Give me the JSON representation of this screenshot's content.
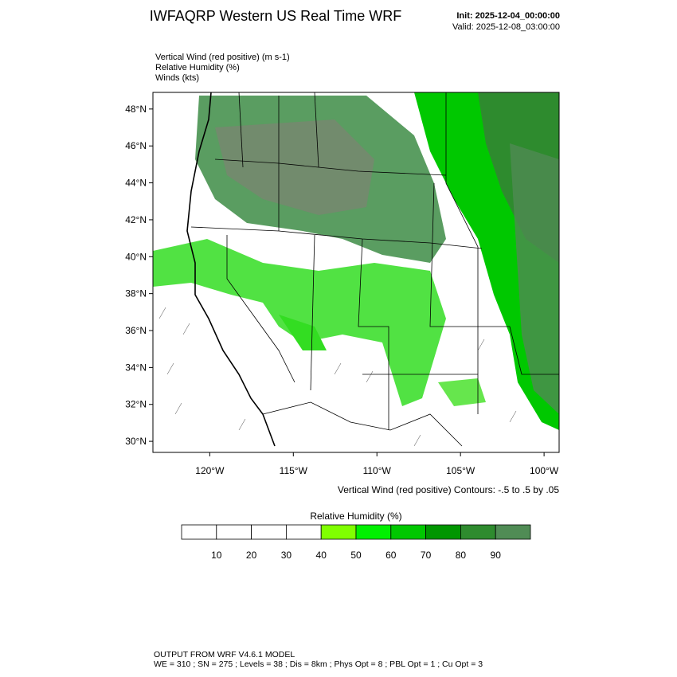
{
  "header": {
    "title": "IWFAQRP Western US Real Time WRF",
    "init": "Init: 2025-12-04_00:00:00",
    "valid": "Valid: 2025-12-08_03:00:00"
  },
  "fields": [
    "Vertical Wind (red positive)   (m s-1)",
    "Relative Humidity   (%)",
    "Winds   (kts)"
  ],
  "map": {
    "xlim": [
      -123.4,
      -99.1
    ],
    "ylim": [
      29.4,
      48.9
    ],
    "yticks": [
      {
        "value": 30,
        "label": "30°N"
      },
      {
        "value": 32,
        "label": "32°N"
      },
      {
        "value": 34,
        "label": "34°N"
      },
      {
        "value": 36,
        "label": "36°N"
      },
      {
        "value": 38,
        "label": "38°N"
      },
      {
        "value": 40,
        "label": "40°N"
      },
      {
        "value": 42,
        "label": "42°N"
      },
      {
        "value": 44,
        "label": "44°N"
      },
      {
        "value": 46,
        "label": "46°N"
      },
      {
        "value": 48,
        "label": "48°N"
      }
    ],
    "xticks": [
      {
        "value": -120,
        "label": "120°W"
      },
      {
        "value": -115,
        "label": "115°W"
      },
      {
        "value": -110,
        "label": "110°W"
      },
      {
        "value": -105,
        "label": "105°W"
      },
      {
        "value": -100,
        "label": "100°W"
      }
    ],
    "contour_note": "Vertical Wind (red positive) Contours: -.5 to .5 by .05"
  },
  "colorbar": {
    "title": "Relative Humidity   (%)",
    "labels": [
      10,
      20,
      30,
      40,
      50,
      60,
      70,
      80,
      90
    ],
    "colors": [
      "#ffffff",
      "#ffffff",
      "#ffffff",
      "#ffffff",
      "#80ff00",
      "#00f000",
      "#00c800",
      "#009600",
      "#2e8b2e",
      "#508c55"
    ]
  },
  "footer": [
    "OUTPUT FROM WRF V4.6.1 MODEL",
    "WE = 310 ; SN = 275 ; Levels = 38 ; Dis = 8km ; Phys Opt = 8 ; PBL Opt = 1 ; Cu Opt = 3"
  ]
}
